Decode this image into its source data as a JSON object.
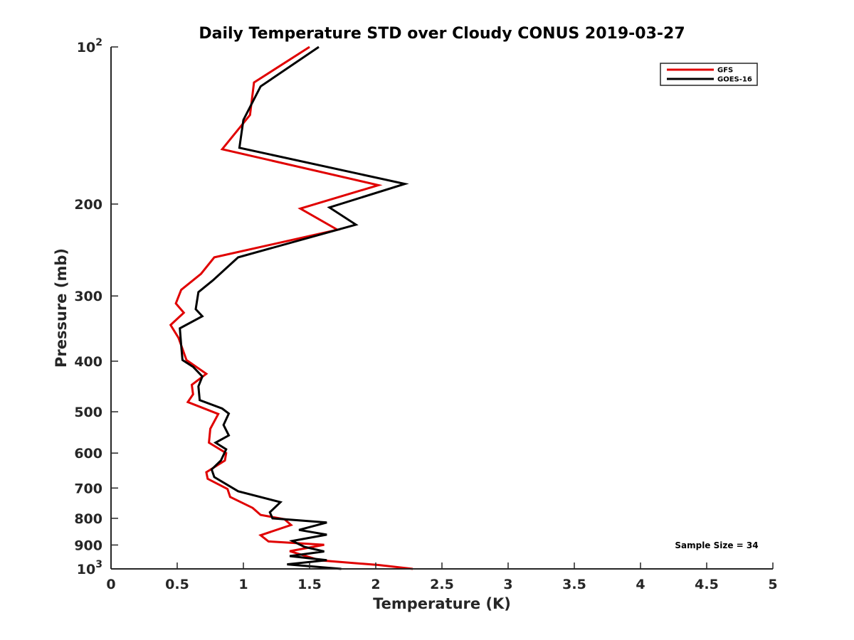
{
  "chart_data": {
    "type": "line",
    "title": "Daily Temperature STD over Cloudy CONUS 2019-03-27",
    "xlabel": "Temperature (K)",
    "ylabel": "Pressure (mb)",
    "xlim": [
      0,
      5
    ],
    "ylim": [
      100,
      1000
    ],
    "y_scale": "log",
    "y_reversed": true,
    "grid": false,
    "legend_position": "top-right",
    "x_ticks": [
      {
        "value": 0,
        "label": "0"
      },
      {
        "value": 0.5,
        "label": "0.5"
      },
      {
        "value": 1,
        "label": "1"
      },
      {
        "value": 1.5,
        "label": "1.5"
      },
      {
        "value": 2,
        "label": "2"
      },
      {
        "value": 2.5,
        "label": "2.5"
      },
      {
        "value": 3,
        "label": "3"
      },
      {
        "value": 3.5,
        "label": "3.5"
      },
      {
        "value": 4,
        "label": "4"
      },
      {
        "value": 4.5,
        "label": "4.5"
      },
      {
        "value": 5,
        "label": "5"
      }
    ],
    "y_ticks": [
      {
        "value": 100,
        "label": "10",
        "sup": "2"
      },
      {
        "value": 200,
        "label": "200"
      },
      {
        "value": 300,
        "label": "300"
      },
      {
        "value": 400,
        "label": "400"
      },
      {
        "value": 500,
        "label": "500"
      },
      {
        "value": 600,
        "label": "600"
      },
      {
        "value": 700,
        "label": "700"
      },
      {
        "value": 800,
        "label": "800"
      },
      {
        "value": 900,
        "label": "900"
      },
      {
        "value": 1000,
        "label": "10",
        "sup": "3"
      }
    ],
    "annotation": "Sample Size = 34",
    "series": [
      {
        "name": "GFS",
        "color": "#e00000",
        "points": [
          {
            "x": 1.5,
            "y": 100
          },
          {
            "x": 1.08,
            "y": 117
          },
          {
            "x": 1.05,
            "y": 135
          },
          {
            "x": 0.84,
            "y": 157
          },
          {
            "x": 2.02,
            "y": 184
          },
          {
            "x": 1.43,
            "y": 204
          },
          {
            "x": 1.71,
            "y": 224
          },
          {
            "x": 0.78,
            "y": 253
          },
          {
            "x": 0.68,
            "y": 272
          },
          {
            "x": 0.53,
            "y": 292
          },
          {
            "x": 0.49,
            "y": 310
          },
          {
            "x": 0.55,
            "y": 323
          },
          {
            "x": 0.45,
            "y": 341
          },
          {
            "x": 0.51,
            "y": 361
          },
          {
            "x": 0.57,
            "y": 398
          },
          {
            "x": 0.72,
            "y": 423
          },
          {
            "x": 0.61,
            "y": 444
          },
          {
            "x": 0.62,
            "y": 463
          },
          {
            "x": 0.58,
            "y": 479
          },
          {
            "x": 0.81,
            "y": 505
          },
          {
            "x": 0.75,
            "y": 539
          },
          {
            "x": 0.74,
            "y": 573
          },
          {
            "x": 0.87,
            "y": 600
          },
          {
            "x": 0.86,
            "y": 620
          },
          {
            "x": 0.72,
            "y": 653
          },
          {
            "x": 0.73,
            "y": 672
          },
          {
            "x": 0.88,
            "y": 703
          },
          {
            "x": 0.9,
            "y": 728
          },
          {
            "x": 1.07,
            "y": 764
          },
          {
            "x": 1.13,
            "y": 788
          },
          {
            "x": 1.31,
            "y": 803
          },
          {
            "x": 1.36,
            "y": 824
          },
          {
            "x": 1.13,
            "y": 862
          },
          {
            "x": 1.19,
            "y": 886
          },
          {
            "x": 1.61,
            "y": 899
          },
          {
            "x": 1.35,
            "y": 925
          },
          {
            "x": 1.58,
            "y": 963
          },
          {
            "x": 2.02,
            "y": 983
          },
          {
            "x": 2.28,
            "y": 1000
          }
        ]
      },
      {
        "name": "GOES-16",
        "color": "#000000",
        "points": [
          {
            "x": 1.57,
            "y": 100
          },
          {
            "x": 1.13,
            "y": 119
          },
          {
            "x": 1.0,
            "y": 138
          },
          {
            "x": 0.97,
            "y": 156
          },
          {
            "x": 2.22,
            "y": 183
          },
          {
            "x": 1.65,
            "y": 203
          },
          {
            "x": 1.85,
            "y": 219
          },
          {
            "x": 0.96,
            "y": 253
          },
          {
            "x": 0.77,
            "y": 280
          },
          {
            "x": 0.66,
            "y": 295
          },
          {
            "x": 0.64,
            "y": 318
          },
          {
            "x": 0.69,
            "y": 328
          },
          {
            "x": 0.52,
            "y": 346
          },
          {
            "x": 0.53,
            "y": 373
          },
          {
            "x": 0.54,
            "y": 398
          },
          {
            "x": 0.62,
            "y": 410
          },
          {
            "x": 0.69,
            "y": 428
          },
          {
            "x": 0.66,
            "y": 447
          },
          {
            "x": 0.67,
            "y": 475
          },
          {
            "x": 0.84,
            "y": 493
          },
          {
            "x": 0.89,
            "y": 504
          },
          {
            "x": 0.85,
            "y": 530
          },
          {
            "x": 0.89,
            "y": 555
          },
          {
            "x": 0.79,
            "y": 573
          },
          {
            "x": 0.87,
            "y": 590
          },
          {
            "x": 0.83,
            "y": 620
          },
          {
            "x": 0.76,
            "y": 645
          },
          {
            "x": 0.78,
            "y": 667
          },
          {
            "x": 0.96,
            "y": 710
          },
          {
            "x": 1.28,
            "y": 745
          },
          {
            "x": 1.2,
            "y": 779
          },
          {
            "x": 1.22,
            "y": 800
          },
          {
            "x": 1.63,
            "y": 815
          },
          {
            "x": 1.42,
            "y": 842
          },
          {
            "x": 1.63,
            "y": 860
          },
          {
            "x": 1.37,
            "y": 884
          },
          {
            "x": 1.46,
            "y": 907
          },
          {
            "x": 1.61,
            "y": 926
          },
          {
            "x": 1.35,
            "y": 945
          },
          {
            "x": 1.63,
            "y": 962
          },
          {
            "x": 1.33,
            "y": 980
          },
          {
            "x": 1.74,
            "y": 1000
          }
        ]
      }
    ]
  }
}
